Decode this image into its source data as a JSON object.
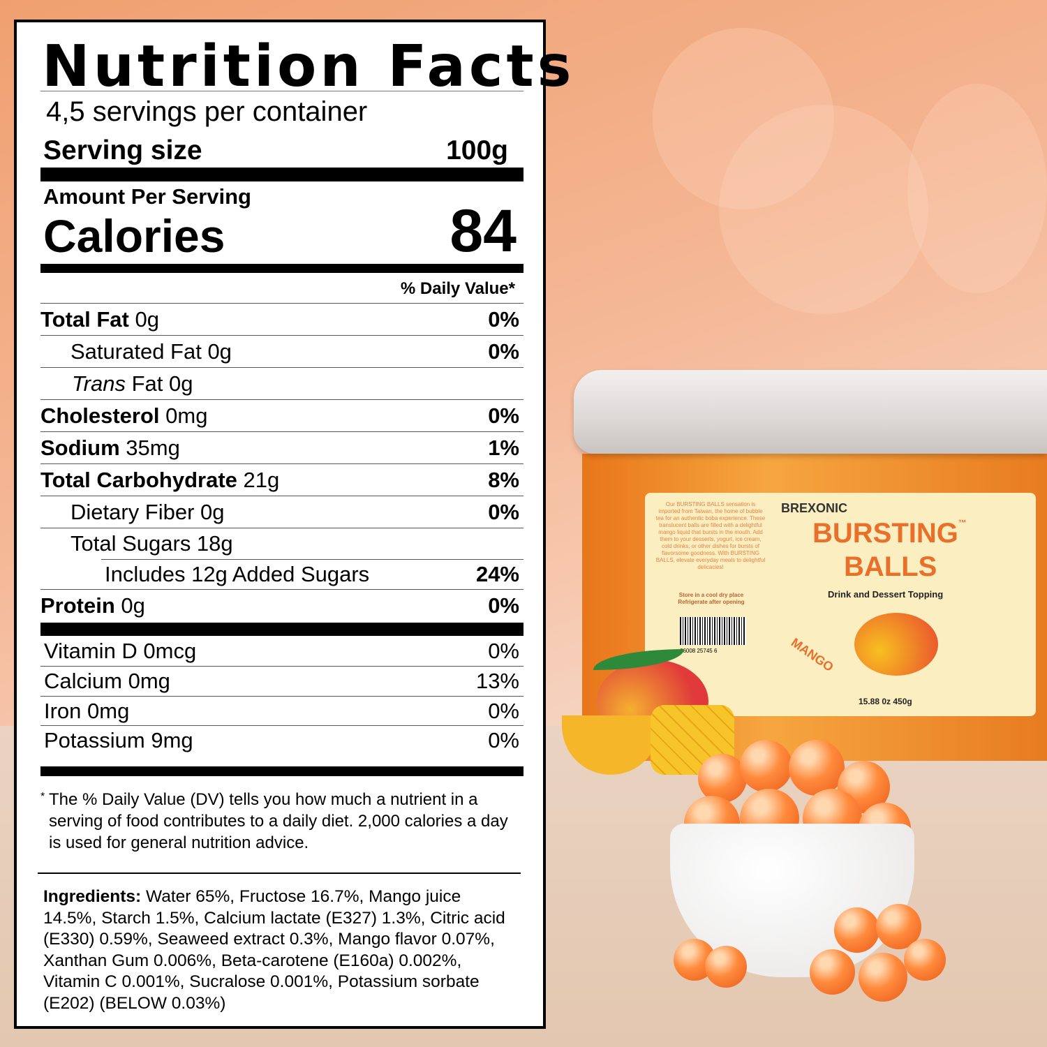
{
  "nutrition": {
    "title": "Nutrition Facts",
    "servings": "4,5 servings per container",
    "serving_size_label": "Serving size",
    "serving_size_value": "100g",
    "amount_per_serving": "Amount Per Serving",
    "calories_label": "Calories",
    "calories_value": "84",
    "dv_header": "% Daily Value*",
    "rows": [
      {
        "name": "Total Fat",
        "amount": " 0g",
        "dv": "0%"
      },
      {
        "name": "Saturated Fat 0g",
        "amount": "",
        "dv": "0%"
      },
      {
        "name": "Trans",
        "amount": " Fat 0g",
        "dv": ""
      },
      {
        "name": "Cholesterol",
        "amount": " 0mg",
        "dv": "0%"
      },
      {
        "name": "Sodium",
        "amount": " 35mg",
        "dv": "1%"
      },
      {
        "name": "Total Carbohydrate",
        "amount": " 21g",
        "dv": "8%"
      },
      {
        "name": "Dietary Fiber 0g",
        "amount": "",
        "dv": "0%"
      },
      {
        "name": "Total Sugars 18g",
        "amount": "",
        "dv": ""
      },
      {
        "name": "Includes 12g Added Sugars",
        "amount": "",
        "dv": "24%"
      },
      {
        "name": "Protein",
        "amount": " 0g",
        "dv": "0%"
      }
    ],
    "vitamins": [
      {
        "name": "Vitamin D 0mcg",
        "dv": "0%"
      },
      {
        "name": "Calcium 0mg",
        "dv": "13%"
      },
      {
        "name": "Iron 0mg",
        "dv": "0%"
      },
      {
        "name": "Potassium 9mg",
        "dv": "0%"
      }
    ],
    "footnote_mark": "*",
    "footnote": "The % Daily Value (DV) tells you how much a nutrient in a serving of food contributes to a daily diet. 2,000 calories a day is used for general nutrition advice.",
    "ingredients_label": "Ingredients:",
    "ingredients": " Water 65%, Fructose 16.7%, Mango juice 14.5%, Starch 1.5%, Calcium lactate (E327) 1.3%, Citric acid (E330) 0.59%, Seaweed extract 0.3%, Mango flavor 0.07%, Xanthan Gum 0.006%, Beta-carotene (E160a) 0.002%, Vitamin C 0.001%, Sucralose 0.001%, Potassium sorbate (E202) (BELOW 0.03%)"
  },
  "product": {
    "brand": "BREXONIC",
    "name_line1": "BURSTING",
    "name_line2": "BALLS",
    "tm": "™",
    "tagline": "Drink and Dessert Topping",
    "flavor": "MANGO",
    "weight": "15.88 0z 450g",
    "description": "Our BURSTING BALLS sensation is imported from Taiwan, the home of bubble tea for an authentic boba experience. These translucent balls are filled with a delightful mango liquid that bursts in the mouth. Add them to your desserts, yogurt, ice cream, cold drinks, or other dishes for bursts of flavorsome goodness. With BURSTING BALLS, elevate everyday meals to delightful delicacies!",
    "storage": "Store in a cool dry place Refrigerate after opening",
    "barcode": "66008 25745 6"
  },
  "colors": {
    "accent": "#f07a2a",
    "label_bg": "#fbeec0"
  }
}
